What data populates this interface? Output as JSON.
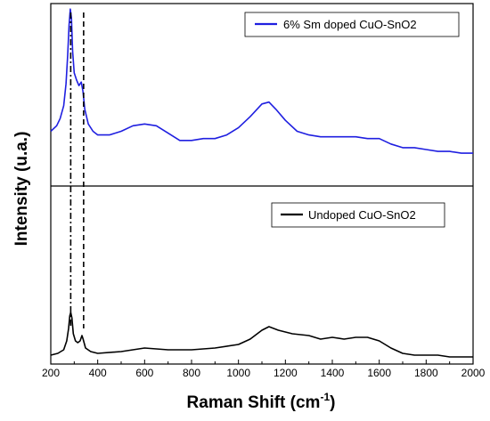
{
  "chart_data": {
    "type": "line",
    "xlabel": "Raman Shift (cm",
    "xlabel_sup": "-1",
    "xlabel_close": ")",
    "ylabel": "Intensity (u.a.)",
    "xlim": [
      200,
      2000
    ],
    "x_ticks": [
      "200",
      "400",
      "600",
      "800",
      "1000",
      "1200",
      "1400",
      "1600",
      "1800",
      "2000"
    ],
    "y_ticks_shown": false,
    "stacked_panels": 2,
    "panels": [
      {
        "series_name": "6% Sm doped CuO-SnO2",
        "color": "#1f1fe0",
        "legend_position": "top-right",
        "points": [
          [
            200,
            0.3
          ],
          [
            225,
            0.33
          ],
          [
            240,
            0.37
          ],
          [
            255,
            0.44
          ],
          [
            265,
            0.56
          ],
          [
            272,
            0.72
          ],
          [
            278,
            0.88
          ],
          [
            283,
            0.97
          ],
          [
            288,
            0.92
          ],
          [
            293,
            0.74
          ],
          [
            300,
            0.62
          ],
          [
            310,
            0.58
          ],
          [
            320,
            0.55
          ],
          [
            330,
            0.57
          ],
          [
            337,
            0.52
          ],
          [
            345,
            0.42
          ],
          [
            360,
            0.34
          ],
          [
            380,
            0.3
          ],
          [
            400,
            0.28
          ],
          [
            450,
            0.28
          ],
          [
            500,
            0.3
          ],
          [
            550,
            0.33
          ],
          [
            600,
            0.34
          ],
          [
            650,
            0.33
          ],
          [
            700,
            0.29
          ],
          [
            750,
            0.25
          ],
          [
            800,
            0.25
          ],
          [
            850,
            0.26
          ],
          [
            900,
            0.26
          ],
          [
            950,
            0.28
          ],
          [
            1000,
            0.32
          ],
          [
            1050,
            0.38
          ],
          [
            1100,
            0.45
          ],
          [
            1130,
            0.46
          ],
          [
            1160,
            0.42
          ],
          [
            1200,
            0.36
          ],
          [
            1250,
            0.3
          ],
          [
            1300,
            0.28
          ],
          [
            1350,
            0.27
          ],
          [
            1400,
            0.27
          ],
          [
            1450,
            0.27
          ],
          [
            1500,
            0.27
          ],
          [
            1550,
            0.26
          ],
          [
            1600,
            0.26
          ],
          [
            1650,
            0.23
          ],
          [
            1700,
            0.21
          ],
          [
            1750,
            0.21
          ],
          [
            1800,
            0.2
          ],
          [
            1850,
            0.19
          ],
          [
            1900,
            0.19
          ],
          [
            1950,
            0.18
          ],
          [
            2000,
            0.18
          ]
        ]
      },
      {
        "series_name": "Undoped CuO-SnO2",
        "color": "#000000",
        "legend_position": "top-right",
        "points": [
          [
            200,
            0.05
          ],
          [
            230,
            0.06
          ],
          [
            255,
            0.08
          ],
          [
            268,
            0.13
          ],
          [
            276,
            0.2
          ],
          [
            281,
            0.27
          ],
          [
            285,
            0.29
          ],
          [
            290,
            0.26
          ],
          [
            296,
            0.17
          ],
          [
            305,
            0.13
          ],
          [
            315,
            0.12
          ],
          [
            325,
            0.13
          ],
          [
            333,
            0.16
          ],
          [
            338,
            0.14
          ],
          [
            348,
            0.09
          ],
          [
            370,
            0.07
          ],
          [
            400,
            0.06
          ],
          [
            500,
            0.07
          ],
          [
            600,
            0.09
          ],
          [
            700,
            0.08
          ],
          [
            800,
            0.08
          ],
          [
            900,
            0.09
          ],
          [
            1000,
            0.11
          ],
          [
            1050,
            0.14
          ],
          [
            1100,
            0.19
          ],
          [
            1130,
            0.21
          ],
          [
            1170,
            0.19
          ],
          [
            1230,
            0.17
          ],
          [
            1300,
            0.16
          ],
          [
            1350,
            0.14
          ],
          [
            1400,
            0.15
          ],
          [
            1450,
            0.14
          ],
          [
            1500,
            0.15
          ],
          [
            1550,
            0.15
          ],
          [
            1600,
            0.13
          ],
          [
            1650,
            0.09
          ],
          [
            1700,
            0.06
          ],
          [
            1750,
            0.05
          ],
          [
            1800,
            0.05
          ],
          [
            1850,
            0.05
          ],
          [
            1900,
            0.04
          ],
          [
            1950,
            0.04
          ],
          [
            2000,
            0.04
          ]
        ]
      }
    ],
    "reference_lines": [
      {
        "x": 285,
        "style": "dash-dot"
      },
      {
        "x": 340,
        "style": "dashed"
      }
    ]
  }
}
